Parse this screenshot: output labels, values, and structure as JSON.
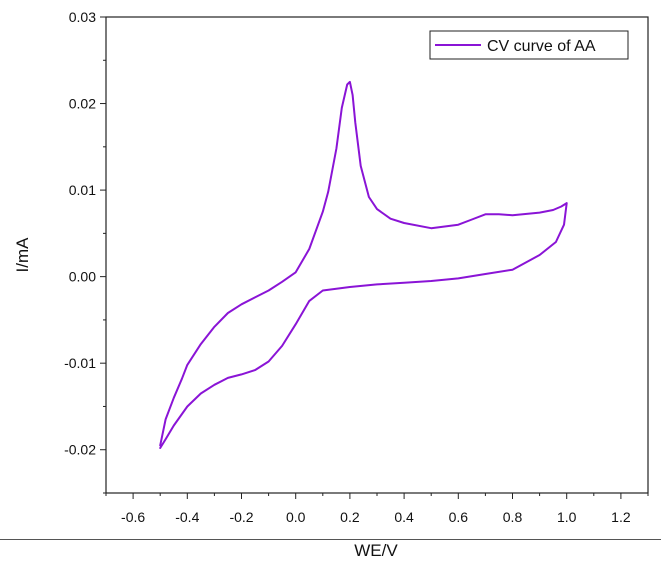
{
  "chart_data": {
    "type": "line",
    "title": "",
    "xlabel": "WE/V",
    "ylabel": "I/mA",
    "xlim": [
      -0.7,
      1.3
    ],
    "ylim": [
      -0.025,
      0.03
    ],
    "x_ticks": [
      "-0.6",
      "-0.4",
      "-0.2",
      "0.0",
      "0.2",
      "0.4",
      "0.6",
      "0.8",
      "1.0",
      "1.2"
    ],
    "y_ticks": [
      "0.03",
      "0.02",
      "0.01",
      "0.00",
      "-0.01",
      "-0.02"
    ],
    "grid": false,
    "legend_position": "top-right",
    "series": [
      {
        "name": "CV curve of AA",
        "color": "#8a14d6",
        "x": [
          -0.5,
          -0.48,
          -0.45,
          -0.42,
          -0.4,
          -0.35,
          -0.3,
          -0.25,
          -0.2,
          -0.15,
          -0.1,
          -0.05,
          0.0,
          0.05,
          0.1,
          0.12,
          0.15,
          0.17,
          0.19,
          0.2,
          0.21,
          0.22,
          0.24,
          0.27,
          0.3,
          0.35,
          0.4,
          0.5,
          0.6,
          0.65,
          0.7,
          0.75,
          0.8,
          0.9,
          0.95,
          0.98,
          1.0,
          0.99,
          0.96,
          0.9,
          0.8,
          0.7,
          0.6,
          0.5,
          0.4,
          0.3,
          0.2,
          0.1,
          0.05,
          0.0,
          -0.05,
          -0.1,
          -0.15,
          -0.2,
          -0.25,
          -0.3,
          -0.35,
          -0.4,
          -0.45,
          -0.48,
          -0.5
        ],
        "y": [
          -0.0195,
          -0.0165,
          -0.014,
          -0.0118,
          -0.0102,
          -0.0078,
          -0.0058,
          -0.0042,
          -0.0032,
          -0.0024,
          -0.0016,
          -0.0006,
          0.0005,
          0.0032,
          0.0075,
          0.0098,
          0.0148,
          0.0195,
          0.0222,
          0.0225,
          0.021,
          0.0178,
          0.0128,
          0.0092,
          0.0078,
          0.0067,
          0.0062,
          0.0056,
          0.006,
          0.0066,
          0.0072,
          0.0072,
          0.0071,
          0.0074,
          0.0077,
          0.0081,
          0.0085,
          0.006,
          0.004,
          0.0025,
          0.0008,
          0.0003,
          -0.0002,
          -0.0005,
          -0.0007,
          -0.0009,
          -0.0012,
          -0.0016,
          -0.0028,
          -0.0055,
          -0.008,
          -0.0098,
          -0.0108,
          -0.0113,
          -0.0117,
          -0.0125,
          -0.0135,
          -0.015,
          -0.0172,
          -0.0188,
          -0.0198
        ]
      }
    ]
  }
}
